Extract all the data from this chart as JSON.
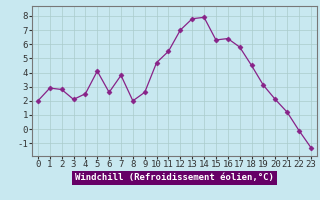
{
  "hours": [
    0,
    1,
    2,
    3,
    4,
    5,
    6,
    7,
    8,
    9,
    10,
    11,
    12,
    13,
    14,
    15,
    16,
    17,
    18,
    19,
    20,
    21,
    22,
    23
  ],
  "values": [
    2.0,
    2.9,
    2.8,
    2.1,
    2.5,
    4.1,
    2.6,
    3.8,
    2.0,
    2.6,
    4.7,
    5.5,
    7.0,
    7.8,
    7.9,
    6.3,
    6.4,
    5.8,
    4.5,
    3.1,
    2.1,
    1.2,
    -0.1,
    -1.3
  ],
  "line_color": "#882288",
  "marker": "D",
  "marker_size": 2.5,
  "bg_color": "#c8e8f0",
  "grid_color": "#aacccc",
  "ylabel_values": [
    -1,
    0,
    1,
    2,
    3,
    4,
    5,
    6,
    7,
    8
  ],
  "ylim": [
    -1.9,
    8.7
  ],
  "xlim": [
    -0.5,
    23.5
  ],
  "xlabel": "Windchill (Refroidissement éolien,°C)",
  "xlabel_bg": "#660066",
  "xlabel_fontsize": 6.5,
  "tick_fontsize": 6.5
}
